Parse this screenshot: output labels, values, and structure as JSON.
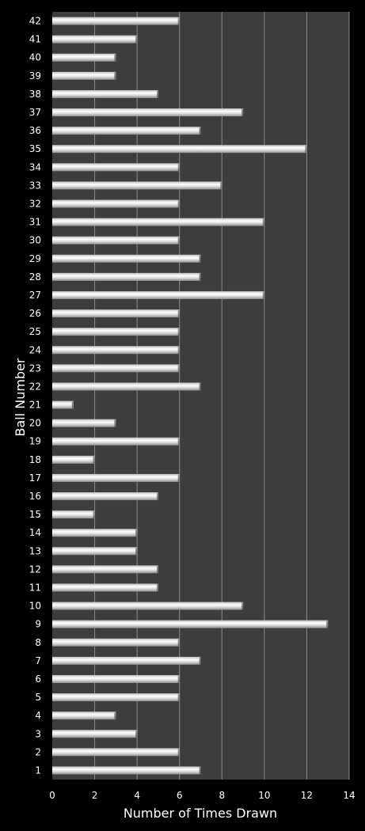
{
  "chart_data": {
    "type": "bar",
    "orientation": "horizontal",
    "xlabel": "Number of Times Drawn",
    "ylabel": "Ball Number",
    "xlim": [
      0,
      14
    ],
    "x_ticks": [
      0,
      2,
      4,
      6,
      8,
      10,
      12,
      14
    ],
    "grid": "vertical",
    "categories": [
      "1",
      "2",
      "3",
      "4",
      "5",
      "6",
      "7",
      "8",
      "9",
      "10",
      "11",
      "12",
      "13",
      "14",
      "15",
      "16",
      "17",
      "18",
      "19",
      "20",
      "21",
      "22",
      "23",
      "24",
      "25",
      "26",
      "27",
      "28",
      "29",
      "30",
      "31",
      "32",
      "33",
      "34",
      "35",
      "36",
      "37",
      "38",
      "39",
      "40",
      "41",
      "42"
    ],
    "values": [
      7,
      6,
      4,
      3,
      6,
      6,
      7,
      6,
      13,
      9,
      5,
      5,
      4,
      4,
      2,
      5,
      6,
      2,
      6,
      3,
      1,
      7,
      6,
      6,
      6,
      6,
      10,
      7,
      7,
      6,
      10,
      6,
      8,
      6,
      12,
      7,
      9,
      5,
      3,
      3,
      4,
      6
    ],
    "colors": {
      "background": "#000000",
      "plot_area": "#3d3d3d",
      "gridline": "#8a8a8a",
      "bar_light": "#ffffff",
      "bar_mid": "#d6d6d6",
      "bar_dark": "#8c8c8c",
      "text": "#ffffff"
    }
  }
}
